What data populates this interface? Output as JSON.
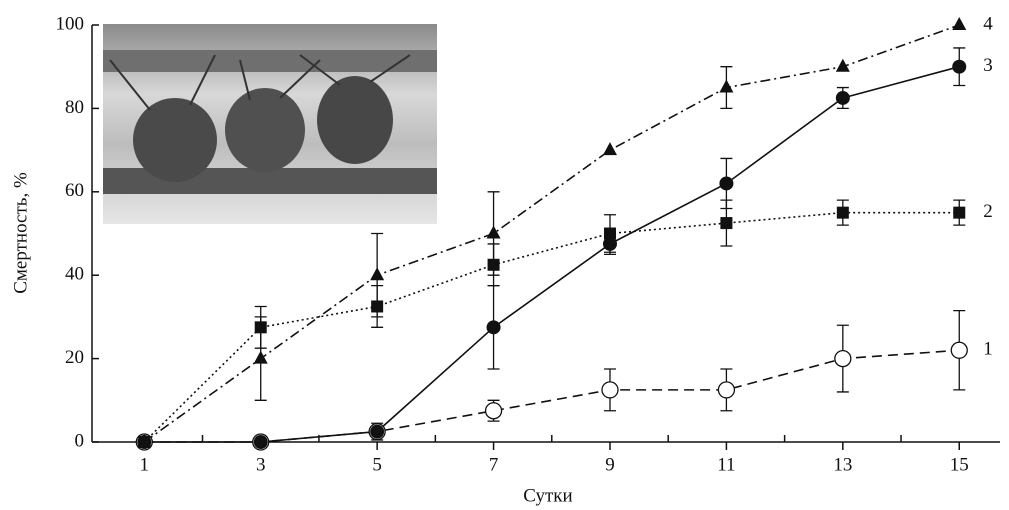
{
  "chart_data": {
    "type": "line",
    "x_label": "Сутки",
    "y_label": "Смертность, %",
    "x": [
      1,
      3,
      5,
      7,
      9,
      11,
      13,
      15
    ],
    "xlim": [
      0.05,
      15.7
    ],
    "xticks": [
      1,
      3,
      5,
      7,
      9,
      11,
      13,
      15
    ],
    "xticks_minor": [
      2,
      4,
      6,
      8,
      10,
      12,
      14
    ],
    "ylim": [
      0,
      100
    ],
    "yticks": [
      0,
      20,
      40,
      60,
      80,
      100
    ],
    "series": [
      {
        "name": "1",
        "color": "#111111",
        "marker": "circle-open",
        "dash": "10 6",
        "values": [
          0,
          0,
          2.5,
          7.5,
          12.5,
          12.5,
          20,
          22
        ],
        "errors": [
          0,
          0,
          0,
          2.5,
          5,
          5,
          8,
          9.5
        ]
      },
      {
        "name": "2",
        "color": "#111111",
        "marker": "square",
        "dash": "2 3",
        "values": [
          0,
          27.5,
          32.5,
          42.5,
          50,
          52.5,
          55,
          55
        ],
        "errors": [
          0,
          5,
          5,
          5,
          4.5,
          5.5,
          3,
          3
        ]
      },
      {
        "name": "3",
        "color": "#111111",
        "marker": "circle",
        "dash": "none",
        "values": [
          0,
          0,
          2.5,
          27.5,
          47.5,
          62,
          82.5,
          90
        ],
        "errors": [
          0,
          0,
          2,
          10,
          2.5,
          6,
          2.5,
          4.5
        ]
      },
      {
        "name": "4",
        "color": "#111111",
        "marker": "triangle",
        "dash": "10 4 2 4",
        "values": [
          0,
          20,
          40,
          50,
          70,
          85,
          90,
          100
        ],
        "errors": [
          0,
          10,
          10,
          10,
          0,
          5,
          0,
          0
        ]
      }
    ]
  }
}
